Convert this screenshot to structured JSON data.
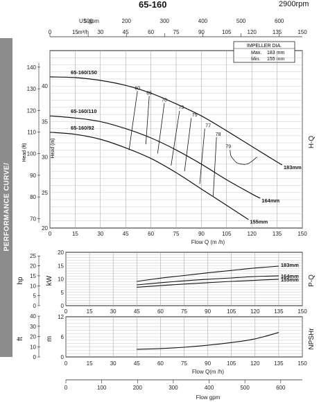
{
  "header": {
    "model": "65-160",
    "speed": "2900rpm"
  },
  "side_band_text": "PERFORMANCE CURVE/",
  "chart_data": {
    "type": "line",
    "q_axis": {
      "ticks": [
        "0",
        "15",
        "30",
        "45",
        "60",
        "75",
        "90",
        "105",
        "120",
        "135",
        "150"
      ],
      "unit_top": "m³/h",
      "xlim": [
        0,
        150
      ]
    },
    "usgpm_axis": {
      "unit": "US gpm",
      "ticks": [
        "0",
        "100",
        "200",
        "300",
        "400",
        "500",
        "600"
      ]
    },
    "hq": {
      "head_m_ticks": [
        "20",
        "25",
        "30",
        "35",
        "40"
      ],
      "head_ft_ticks": [
        "70",
        "80",
        "90",
        "100",
        "110",
        "120",
        "130",
        "140"
      ],
      "ylim": [
        20,
        45
      ],
      "ylabel_m": "Head (m)",
      "ylabel_ft": "Head (ft)",
      "xlabel": "Flow Q (m /h)",
      "side_label": "H-Q",
      "impeller_box": {
        "title": "IMPELLER DIA.",
        "max_label": "Max.",
        "max_value": "183 mm",
        "min_label": "Min.",
        "min_value": "155 mm"
      },
      "series": [
        {
          "name": "65-160/150",
          "diameter_label": "183mm",
          "points": [
            [
              0,
              41.3
            ],
            [
              15,
              41.2
            ],
            [
              30,
              40.8
            ],
            [
              45,
              40.1
            ],
            [
              60,
              39.0
            ],
            [
              75,
              37.5
            ],
            [
              90,
              35.8
            ],
            [
              105,
              33.7
            ],
            [
              120,
              31.5
            ],
            [
              135,
              29.3
            ],
            [
              138,
              28.9
            ]
          ]
        },
        {
          "name": "65-160/110",
          "diameter_label": "164mm",
          "points": [
            [
              0,
              35.8
            ],
            [
              15,
              35.5
            ],
            [
              30,
              35.0
            ],
            [
              45,
              34.0
            ],
            [
              60,
              32.7
            ],
            [
              75,
              31.0
            ],
            [
              90,
              29.0
            ],
            [
              105,
              26.8
            ],
            [
              120,
              24.8
            ],
            [
              125,
              24.2
            ]
          ]
        },
        {
          "name": "65-160/92",
          "diameter_label": "155mm",
          "points": [
            [
              0,
              33.5
            ],
            [
              15,
              33.2
            ],
            [
              30,
              32.5
            ],
            [
              45,
              31.3
            ],
            [
              60,
              29.8
            ],
            [
              75,
              27.8
            ],
            [
              90,
              25.5
            ],
            [
              105,
              23.2
            ],
            [
              118,
              21.2
            ]
          ]
        }
      ],
      "efficiency_labels": [
        "60",
        "65",
        "70",
        "73",
        "75",
        "77",
        "78",
        "79"
      ],
      "efficiency_label_points": [
        [
          52,
          39.5
        ],
        [
          59,
          38.8
        ],
        [
          68,
          37.8
        ],
        [
          78,
          36.8
        ],
        [
          86,
          35.7
        ],
        [
          94,
          34.2
        ],
        [
          100,
          33.0
        ],
        [
          106,
          31.3
        ]
      ],
      "efficiency_lines": [
        [
          [
            52,
            39.3
          ],
          [
            47,
            31.0
          ]
        ],
        [
          [
            59,
            38.6
          ],
          [
            57,
            31.8
          ]
        ],
        [
          [
            68,
            37.6
          ],
          [
            64,
            30.5
          ]
        ],
        [
          [
            77,
            36.5
          ],
          [
            72,
            28.8
          ]
        ],
        [
          [
            84,
            35.5
          ],
          [
            80,
            28.0
          ]
        ],
        [
          [
            92,
            34.0
          ],
          [
            89,
            26.2
          ]
        ],
        [
          [
            99,
            32.8
          ],
          [
            97,
            24.5
          ]
        ]
      ],
      "efficiency_loop_79": [
        [
          107,
          31.0
        ],
        [
          107.5,
          30.2
        ],
        [
          109,
          29.7
        ],
        [
          111,
          29.2
        ],
        [
          114,
          29.0
        ],
        [
          117,
          29.0
        ],
        [
          120,
          29.4
        ],
        [
          123,
          30.0
        ]
      ]
    },
    "power": {
      "kw_ticks": [
        "0",
        "5",
        "10",
        "15",
        "20"
      ],
      "hp_ticks": [
        "0",
        "5",
        "10",
        "15",
        "20",
        "25"
      ],
      "ylim_kw": [
        0,
        20
      ],
      "ylabel_kw": "kW",
      "ylabel_hp": "hp",
      "side_label": "P-Q",
      "series": [
        {
          "name": "183mm",
          "points": [
            [
              45,
              9.1
            ],
            [
              60,
              10.3
            ],
            [
              75,
              11.3
            ],
            [
              90,
              12.3
            ],
            [
              105,
              13.2
            ],
            [
              120,
              14.1
            ],
            [
              135,
              14.8
            ]
          ]
        },
        {
          "name": "164mm",
          "points": [
            [
              45,
              7.8
            ],
            [
              60,
              8.6
            ],
            [
              75,
              9.3
            ],
            [
              90,
              9.9
            ],
            [
              105,
              10.4
            ],
            [
              120,
              10.9
            ],
            [
              135,
              11.2
            ]
          ]
        },
        {
          "name": "155mm",
          "points": [
            [
              45,
              6.9
            ],
            [
              60,
              7.5
            ],
            [
              75,
              8.1
            ],
            [
              90,
              8.6
            ],
            [
              105,
              9.1
            ],
            [
              120,
              9.5
            ],
            [
              135,
              9.9
            ]
          ]
        }
      ]
    },
    "npshr": {
      "m_ticks": [
        "0",
        "6",
        "12"
      ],
      "ft_ticks": [
        "0",
        "10",
        "20",
        "30",
        "40"
      ],
      "ylim_m": [
        0,
        12
      ],
      "ylabel_m": "m",
      "ylabel_ft": "ft",
      "side_label": "NPSHr",
      "xlabel": "Flow  Q(m /h)",
      "points": [
        [
          45,
          2.3
        ],
        [
          60,
          2.5
        ],
        [
          75,
          2.9
        ],
        [
          90,
          3.5
        ],
        [
          105,
          4.3
        ],
        [
          120,
          5.4
        ],
        [
          135,
          7.3
        ]
      ]
    },
    "bottom_gpm_axis": {
      "ticks": [
        "0",
        "100",
        "200",
        "300",
        "400",
        "500",
        "600"
      ],
      "label": "Flow gpm"
    }
  }
}
